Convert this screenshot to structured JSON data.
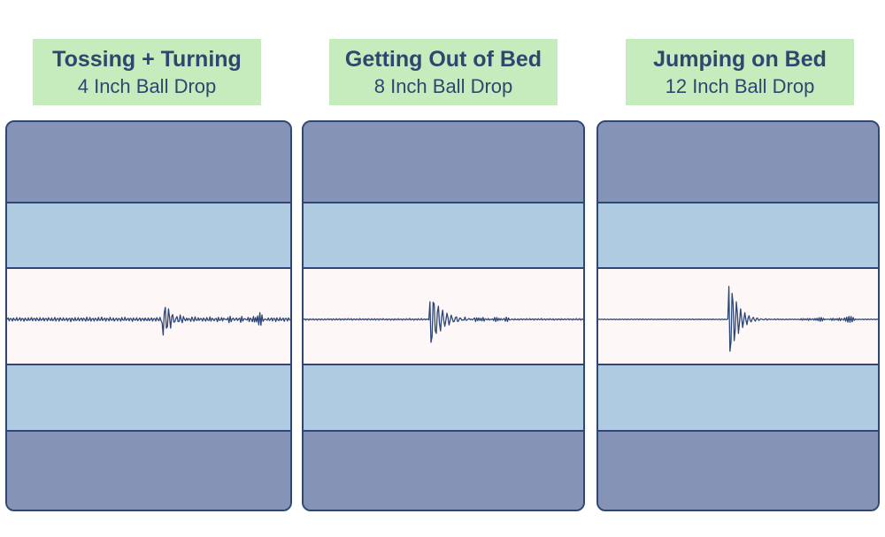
{
  "panels": [
    {
      "title": "Tossing + Turning",
      "subtitle": "4 Inch Ball Drop"
    },
    {
      "title": "Getting Out of Bed",
      "subtitle": "8 Inch Ball Drop"
    },
    {
      "title": "Jumping on Bed",
      "subtitle": "12 Inch Ball Drop"
    }
  ],
  "colors": {
    "label_background": "#c6ebbd",
    "text": "#2e4770",
    "outline": "#2f4776",
    "dark_layer": "#8593b6",
    "light_layer": "#afcbe1",
    "center_layer": "#fdf7f7",
    "wave": "#2f4776"
  }
}
